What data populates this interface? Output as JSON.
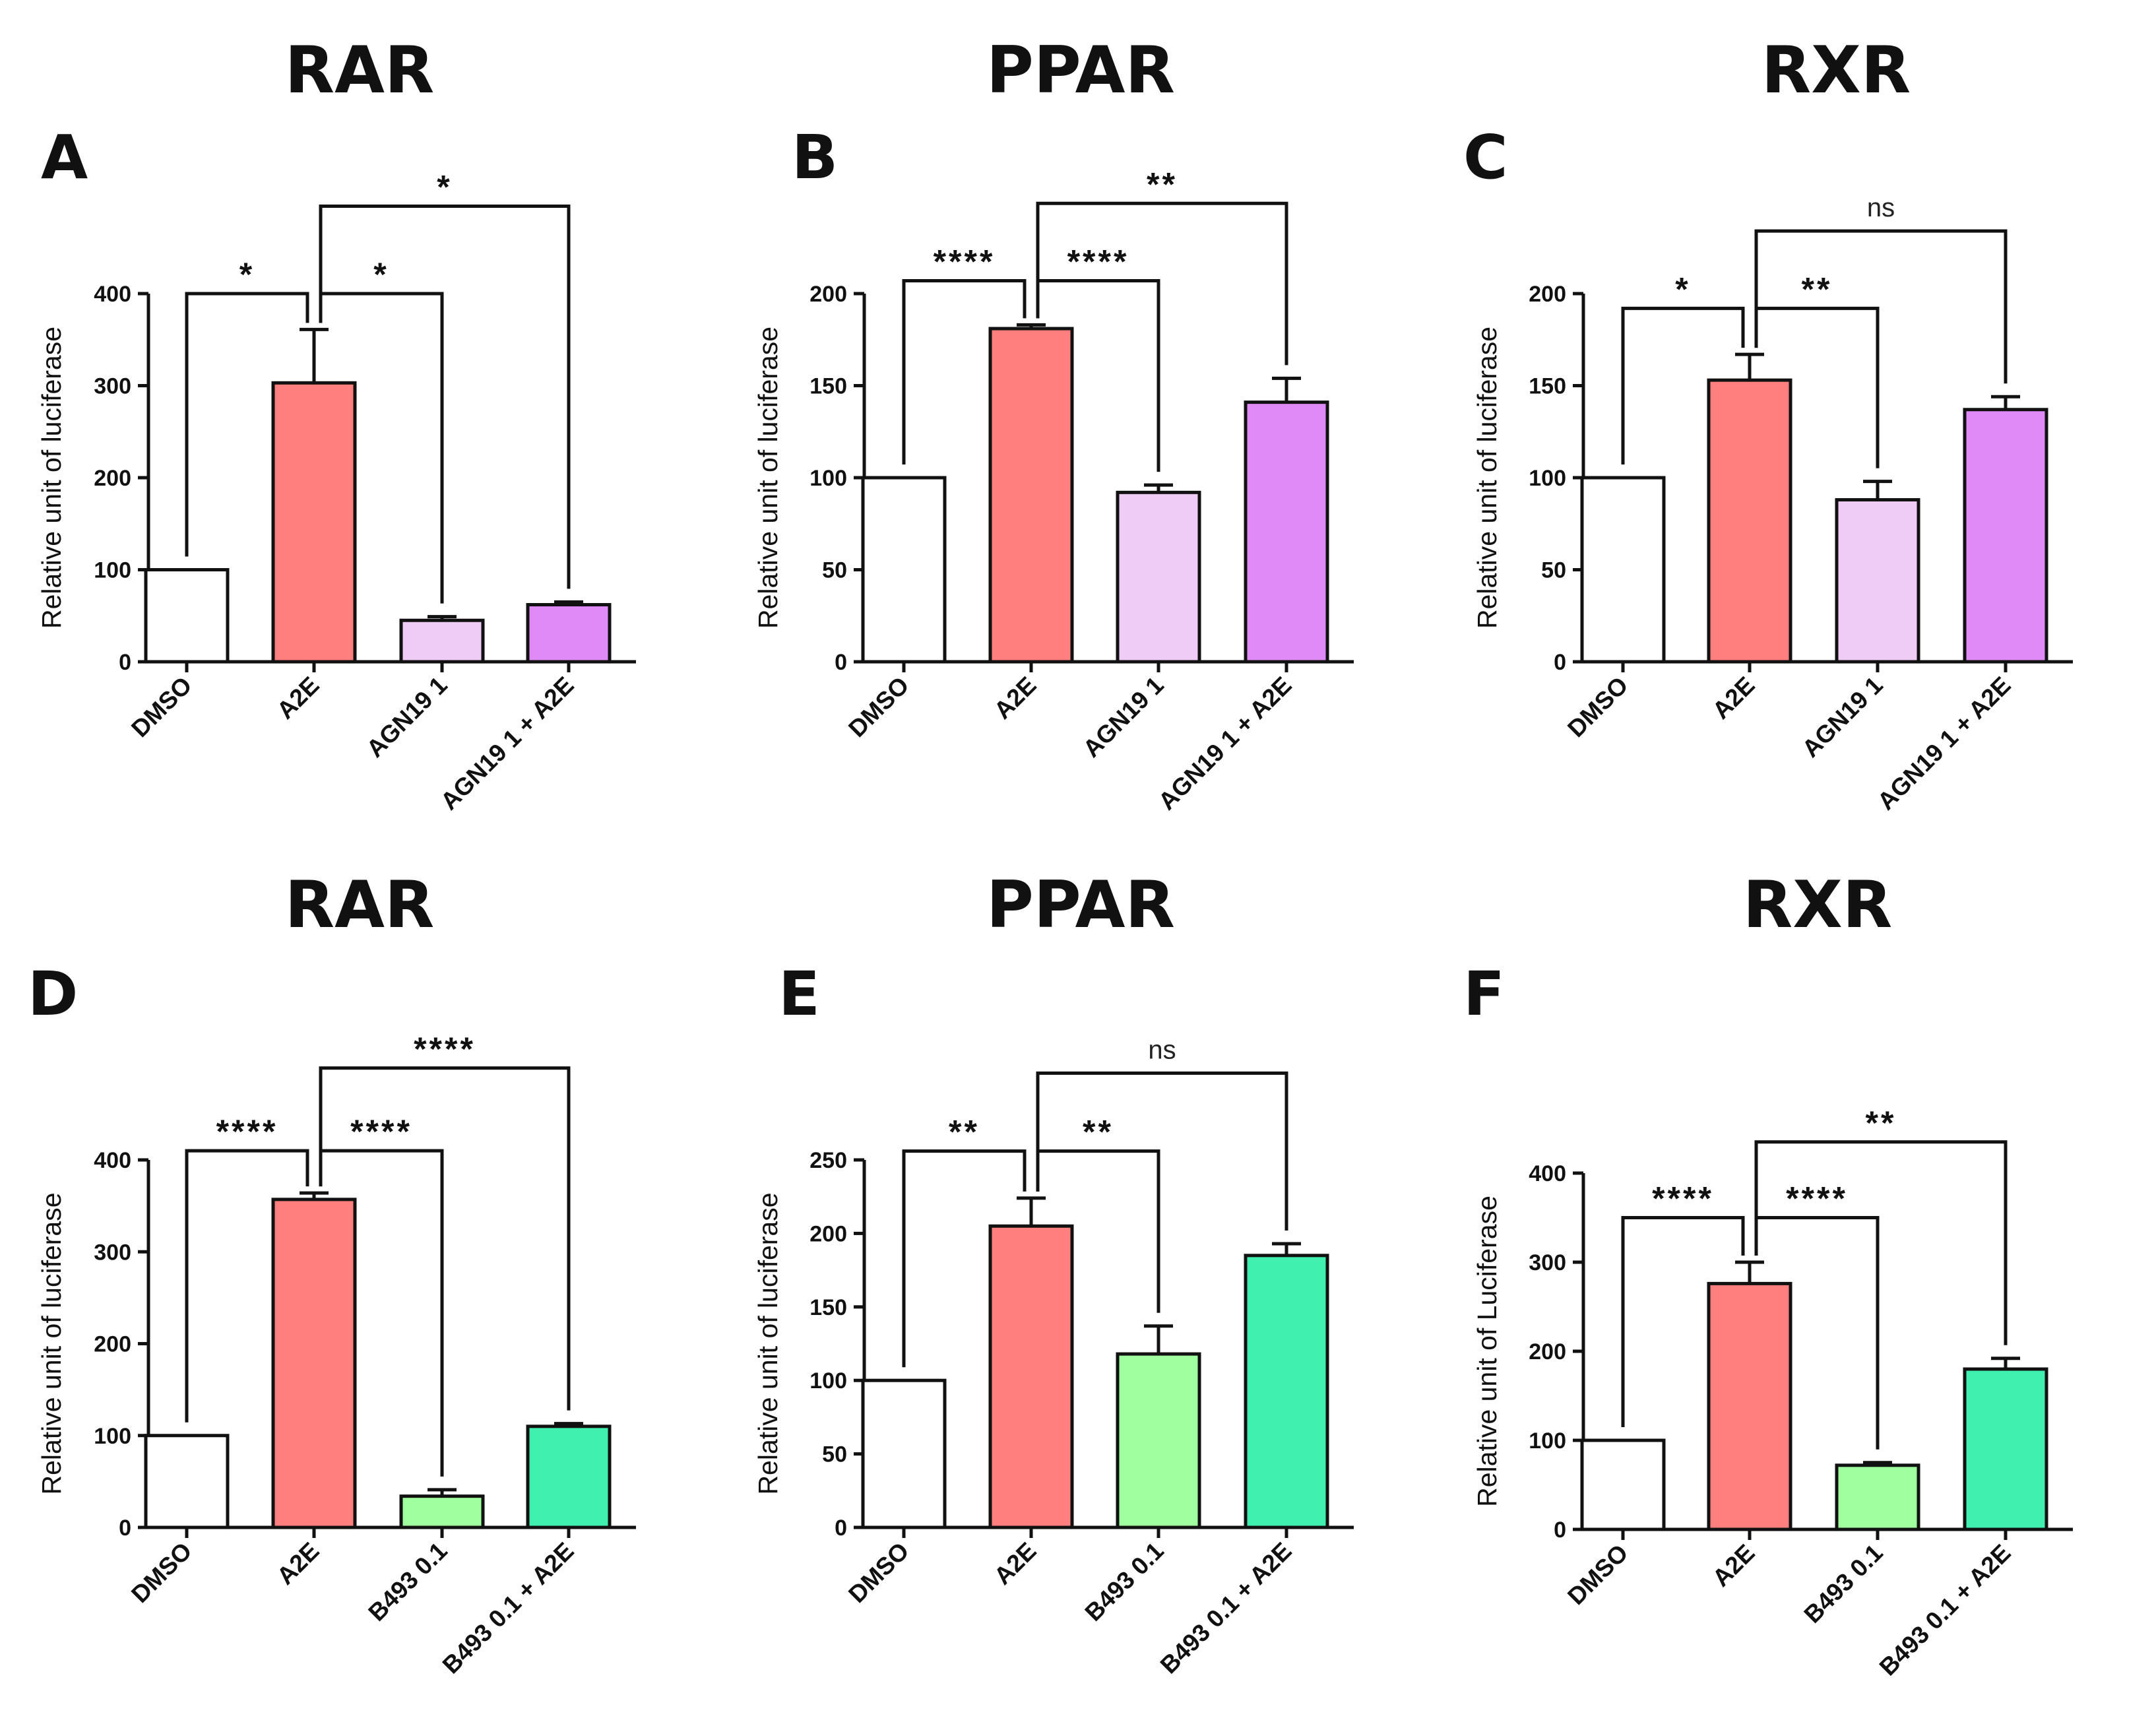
{
  "chart_data": [
    {
      "panel": "A",
      "title": "RAR",
      "type": "bar",
      "ylabel": "Relative unit of luciferase",
      "categories": [
        "DMSO",
        "A2E",
        "AGN19 1",
        "AGN19 1 + A2E"
      ],
      "values": [
        100,
        303,
        45,
        62
      ],
      "errors": [
        0,
        58,
        4,
        3
      ],
      "colors": [
        "#ffffff",
        "#ff7f7f",
        "#efccf5",
        "#df8af6"
      ],
      "ylim": [
        0,
        400
      ],
      "yticks": [
        "0",
        "100",
        "200",
        "300",
        "400"
      ],
      "comparisons": [
        {
          "from": 0,
          "to": 1,
          "label": "*",
          "level": 400
        },
        {
          "from": 1,
          "to": 2,
          "label": "*",
          "level": 400
        },
        {
          "from": 1,
          "to": 3,
          "label": "*",
          "level": 495
        }
      ]
    },
    {
      "panel": "B",
      "title": "PPAR",
      "type": "bar",
      "ylabel": "Relative unit of luciferase",
      "categories": [
        "DMSO",
        "A2E",
        "AGN19 1",
        "AGN19 1 + A2E"
      ],
      "values": [
        100,
        181,
        92,
        141
      ],
      "errors": [
        0,
        2,
        4,
        13
      ],
      "colors": [
        "#ffffff",
        "#ff7f7f",
        "#efccf5",
        "#df8af6"
      ],
      "ylim": [
        0,
        200
      ],
      "yticks": [
        "0",
        "50",
        "100",
        "150",
        "200"
      ],
      "comparisons": [
        {
          "from": 0,
          "to": 1,
          "label": "****",
          "level": 207
        },
        {
          "from": 1,
          "to": 2,
          "label": "****",
          "level": 207
        },
        {
          "from": 1,
          "to": 3,
          "label": "**",
          "level": 249
        }
      ]
    },
    {
      "panel": "C",
      "title": "RXR",
      "type": "bar",
      "ylabel": "Relative unit of luciferase",
      "categories": [
        "DMSO",
        "A2E",
        "AGN19 1",
        "AGN19 1 + A2E"
      ],
      "values": [
        100,
        153,
        88,
        137
      ],
      "errors": [
        0,
        14,
        10,
        7
      ],
      "colors": [
        "#ffffff",
        "#ff7f7f",
        "#efccf5",
        "#df8af6"
      ],
      "ylim": [
        0,
        200
      ],
      "yticks": [
        "0",
        "50",
        "100",
        "150",
        "200"
      ],
      "comparisons": [
        {
          "from": 0,
          "to": 1,
          "label": "*",
          "level": 192
        },
        {
          "from": 1,
          "to": 2,
          "label": "**",
          "level": 192
        },
        {
          "from": 1,
          "to": 3,
          "label": "ns",
          "level": 234
        }
      ]
    },
    {
      "panel": "D",
      "title": "RAR",
      "type": "bar",
      "ylabel": "Relative unit of luciferase",
      "categories": [
        "DMSO",
        "A2E",
        "B493 0.1",
        "B493 0.1 + A2E"
      ],
      "values": [
        100,
        357,
        34,
        110
      ],
      "errors": [
        0,
        7,
        7,
        3
      ],
      "colors": [
        "#ffffff",
        "#ff7f7f",
        "#a0ff9e",
        "#40f0ae"
      ],
      "ylim": [
        0,
        400
      ],
      "yticks": [
        "0",
        "100",
        "200",
        "300",
        "400"
      ],
      "comparisons": [
        {
          "from": 0,
          "to": 1,
          "label": "****",
          "level": 410
        },
        {
          "from": 1,
          "to": 2,
          "label": "****",
          "level": 410
        },
        {
          "from": 1,
          "to": 3,
          "label": "****",
          "level": 500
        }
      ]
    },
    {
      "panel": "E",
      "title": "PPAR",
      "type": "bar",
      "ylabel": "Relative unit of luciferase",
      "categories": [
        "DMSO",
        "A2E",
        "B493 0.1",
        "B493 0.1 + A2E"
      ],
      "values": [
        100,
        205,
        118,
        185
      ],
      "errors": [
        0,
        19,
        19,
        8
      ],
      "colors": [
        "#ffffff",
        "#ff7f7f",
        "#a0ff9e",
        "#40f0ae"
      ],
      "ylim": [
        0,
        250
      ],
      "yticks": [
        "0",
        "50",
        "100",
        "150",
        "200",
        "250"
      ],
      "comparisons": [
        {
          "from": 0,
          "to": 1,
          "label": "**",
          "level": 256
        },
        {
          "from": 1,
          "to": 2,
          "label": "**",
          "level": 256
        },
        {
          "from": 1,
          "to": 3,
          "label": "ns",
          "level": 309
        }
      ]
    },
    {
      "panel": "F",
      "title": "RXR",
      "type": "bar",
      "ylabel": "Relative unit of Luciferase",
      "categories": [
        "DMSO",
        "A2E",
        "B493 0.1",
        "B493 0.1 + A2E"
      ],
      "values": [
        100,
        276,
        72,
        180
      ],
      "errors": [
        0,
        24,
        3,
        12
      ],
      "colors": [
        "#ffffff",
        "#ff7f7f",
        "#a0ff9e",
        "#40f0ae"
      ],
      "ylim": [
        0,
        400
      ],
      "yticks": [
        "0",
        "100",
        "200",
        "300",
        "400"
      ],
      "comparisons": [
        {
          "from": 0,
          "to": 1,
          "label": "****",
          "level": 350
        },
        {
          "from": 1,
          "to": 2,
          "label": "****",
          "level": 350
        },
        {
          "from": 1,
          "to": 3,
          "label": "**",
          "level": 435
        }
      ]
    }
  ]
}
